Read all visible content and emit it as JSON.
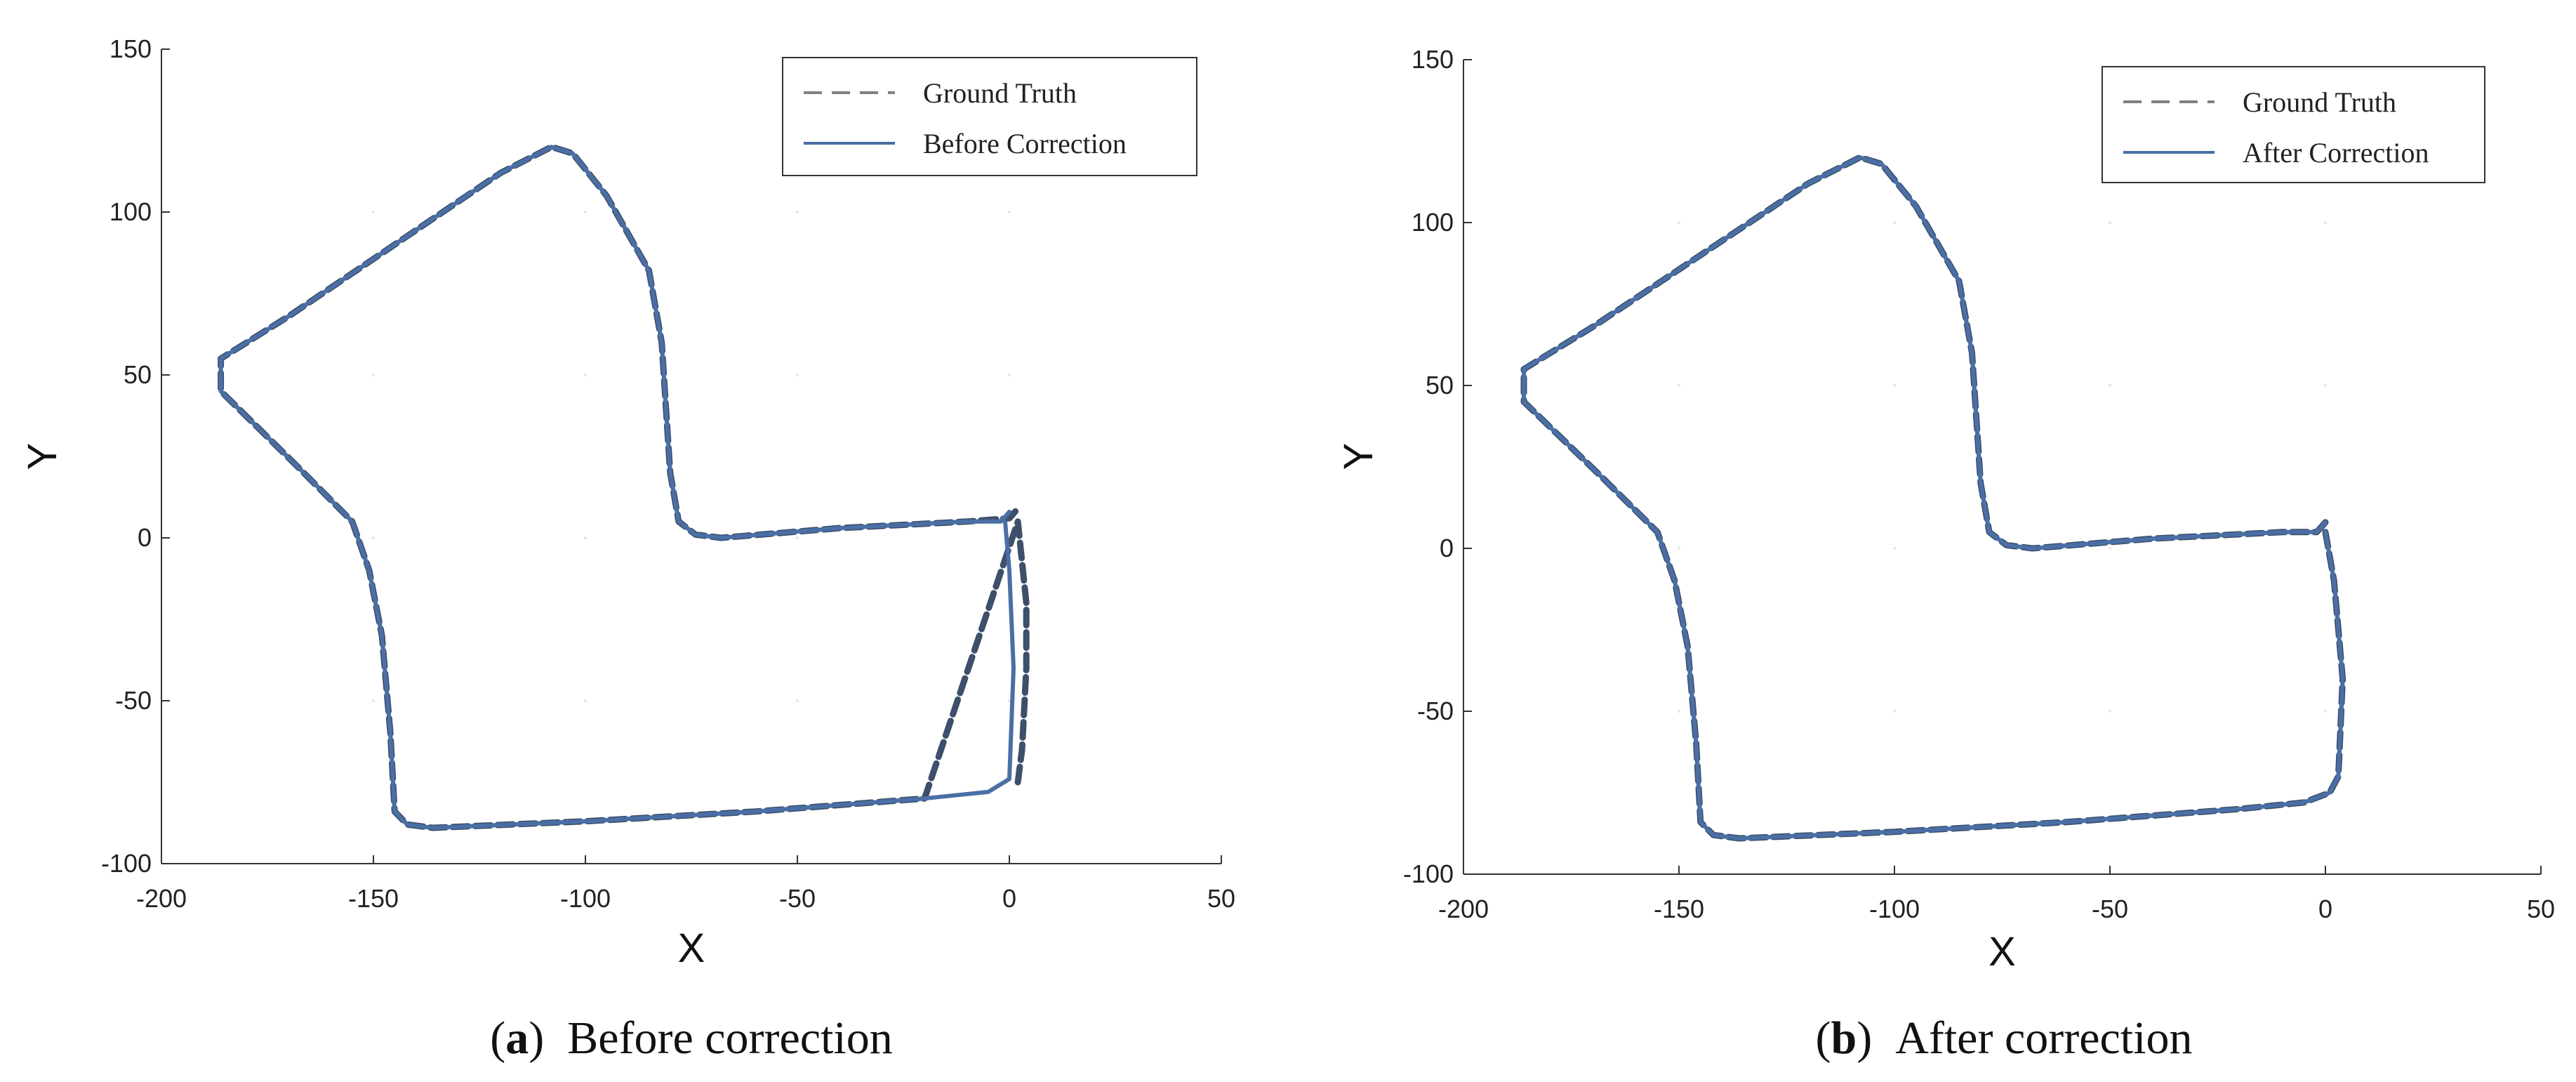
{
  "colors": {
    "ground_truth": "#808080",
    "trajectory": "#4a6fa5",
    "overlap": "#3d4f6a"
  },
  "chart_data": [
    {
      "type": "line",
      "caption": {
        "letter": "a",
        "text": "Before correction"
      },
      "xlabel": "X",
      "ylabel": "Y",
      "xlim": [
        -200,
        50
      ],
      "ylim": [
        -100,
        150
      ],
      "xticks": [
        -200,
        -150,
        -100,
        -50,
        0,
        50
      ],
      "yticks": [
        150,
        100,
        50,
        0,
        -50,
        -100
      ],
      "legend": {
        "position": "top-right",
        "items": [
          "Ground Truth",
          "Before Correction"
        ]
      },
      "series": [
        {
          "name": "Ground Truth",
          "style": "dashed",
          "x": [
            2,
            3,
            4,
            4,
            2,
            -20,
            -60,
            -100,
            -136,
            -142,
            -145,
            -146,
            -148,
            -151,
            -155,
            -168,
            -186,
            -186,
            -170,
            -120,
            -108,
            -103,
            -95,
            -85,
            -82,
            -80,
            -78,
            -74,
            -68,
            -40,
            -10,
            0,
            2
          ],
          "y": [
            -75,
            -65,
            -40,
            -20,
            5,
            -80,
            -84,
            -87,
            -89,
            -88,
            -84,
            -60,
            -30,
            -10,
            5,
            22,
            45,
            55,
            68,
            112,
            120,
            118,
            105,
            82,
            60,
            20,
            5,
            1,
            0,
            3,
            5,
            6,
            9
          ]
        },
        {
          "name": "Before Correction",
          "style": "solid",
          "x": [
            0,
            -2,
            -10,
            -40,
            -68,
            -74,
            -78,
            -80,
            -82,
            -85,
            -95,
            -103,
            -108,
            -120,
            -170,
            -186,
            -186,
            -168,
            -155,
            -151,
            -148,
            -146,
            -145,
            -142,
            -136,
            -100,
            -60,
            -20,
            -5,
            0,
            1,
            0,
            -1
          ],
          "y": [
            8,
            5,
            5,
            3,
            0,
            1,
            5,
            20,
            60,
            82,
            105,
            118,
            120,
            112,
            68,
            55,
            45,
            22,
            5,
            -10,
            -30,
            -60,
            -84,
            -88,
            -89,
            -87,
            -84,
            -80,
            -78,
            -74,
            -40,
            -10,
            5
          ]
        }
      ]
    },
    {
      "type": "line",
      "caption": {
        "letter": "b",
        "text": "After correction"
      },
      "xlabel": "X",
      "ylabel": "Y",
      "xlim": [
        -200,
        50
      ],
      "ylim": [
        -100,
        150
      ],
      "xticks": [
        -200,
        -150,
        -100,
        -50,
        0,
        50
      ],
      "yticks": [
        150,
        100,
        50,
        0,
        -50,
        -100
      ],
      "legend": {
        "position": "top-right",
        "items": [
          "Ground Truth",
          "After Correction"
        ]
      },
      "series": [
        {
          "name": "Ground Truth",
          "style": "dashed",
          "x": [
            0,
            -2,
            -10,
            -40,
            -68,
            -74,
            -78,
            -80,
            -82,
            -85,
            -95,
            -103,
            -108,
            -120,
            -170,
            -186,
            -186,
            -168,
            -155,
            -151,
            -148,
            -146,
            -145,
            -142,
            -136,
            -100,
            -60,
            -20,
            -5,
            1,
            3,
            4,
            2,
            0
          ],
          "y": [
            8,
            5,
            5,
            3,
            0,
            1,
            5,
            20,
            60,
            82,
            105,
            118,
            120,
            112,
            68,
            55,
            45,
            22,
            5,
            -10,
            -30,
            -60,
            -84,
            -88,
            -89,
            -87,
            -84,
            -80,
            -78,
            -75,
            -70,
            -40,
            -10,
            5
          ]
        },
        {
          "name": "After Correction",
          "style": "solid",
          "x": [
            0,
            -2,
            -10,
            -40,
            -68,
            -74,
            -78,
            -80,
            -82,
            -85,
            -95,
            -103,
            -108,
            -120,
            -170,
            -186,
            -186,
            -168,
            -155,
            -151,
            -148,
            -146,
            -145,
            -142,
            -136,
            -100,
            -60,
            -20,
            -5,
            1,
            3,
            4,
            2,
            0
          ],
          "y": [
            8,
            5,
            5,
            3,
            0,
            1,
            5,
            20,
            60,
            82,
            105,
            118,
            120,
            112,
            68,
            55,
            45,
            22,
            5,
            -10,
            -30,
            -60,
            -84,
            -88,
            -89,
            -87,
            -84,
            -80,
            -78,
            -75,
            -70,
            -40,
            -10,
            5
          ]
        }
      ]
    }
  ]
}
